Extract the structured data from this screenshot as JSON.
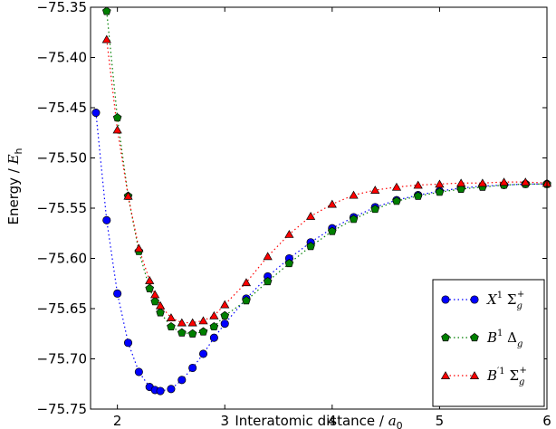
{
  "chart_data": {
    "type": "line",
    "xlabel": {
      "text": "Interatomic distance / ",
      "var": "a",
      "sub": "0"
    },
    "ylabel": {
      "text": "Energy / ",
      "var": "E",
      "sub": "h"
    },
    "xlim": [
      1.75,
      6.0
    ],
    "ylim": [
      -75.75,
      -75.35
    ],
    "xticks": [
      2,
      3,
      4,
      5,
      6
    ],
    "yticks": [
      -75.35,
      -75.4,
      -75.45,
      -75.5,
      -75.55,
      -75.6,
      -75.65,
      -75.7,
      -75.75
    ],
    "xtick_labels": [
      "2",
      "3",
      "4",
      "5",
      "6"
    ],
    "ytick_labels": [
      "−75.35",
      "−75.40",
      "−75.45",
      "−75.50",
      "−75.55",
      "−75.60",
      "−75.65",
      "−75.70",
      "−75.75"
    ],
    "grid": false,
    "legend_position": "lower-right",
    "series": [
      {
        "name": "X1 Σg+",
        "legend": {
          "var": "X",
          "sup": "1",
          "greek": "Σ",
          "gsub": "g",
          "gsup": "+"
        },
        "color": "#0000ff",
        "marker": "circle",
        "line": "dotted",
        "x": [
          1.8,
          1.9,
          2.0,
          2.1,
          2.2,
          2.3,
          2.35,
          2.4,
          2.5,
          2.6,
          2.7,
          2.8,
          2.9,
          3.0,
          3.2,
          3.4,
          3.6,
          3.8,
          4.0,
          4.2,
          4.4,
          4.6,
          4.8,
          5.0,
          5.2,
          5.4,
          5.6,
          5.8,
          6.0
        ],
        "y": [
          -75.455,
          -75.562,
          -75.635,
          -75.684,
          -75.713,
          -75.728,
          -75.731,
          -75.732,
          -75.73,
          -75.721,
          -75.709,
          -75.695,
          -75.679,
          -75.665,
          -75.64,
          -75.618,
          -75.6,
          -75.584,
          -75.57,
          -75.559,
          -75.549,
          -75.542,
          -75.537,
          -75.533,
          -75.53,
          -75.528,
          -75.527,
          -75.526,
          -75.526
        ]
      },
      {
        "name": "B1 Δg",
        "legend": {
          "var": "B",
          "sup": "1",
          "greek": "Δ",
          "gsub": "g",
          "gsup": ""
        },
        "color": "#007f00",
        "marker": "pentagon",
        "line": "dotted",
        "x": [
          1.9,
          2.0,
          2.1,
          2.2,
          2.3,
          2.35,
          2.4,
          2.5,
          2.6,
          2.7,
          2.8,
          2.9,
          3.0,
          3.2,
          3.4,
          3.6,
          3.8,
          4.0,
          4.2,
          4.4,
          4.6,
          4.8,
          5.0,
          5.2,
          5.4,
          5.6,
          5.8,
          6.0
        ],
        "y": [
          -75.354,
          -75.46,
          -75.538,
          -75.593,
          -75.63,
          -75.643,
          -75.654,
          -75.668,
          -75.674,
          -75.675,
          -75.673,
          -75.668,
          -75.657,
          -75.642,
          -75.623,
          -75.605,
          -75.588,
          -75.573,
          -75.561,
          -75.551,
          -75.543,
          -75.538,
          -75.534,
          -75.531,
          -75.529,
          -75.527,
          -75.526,
          -75.526
        ]
      },
      {
        "name": "B′1 Σg+",
        "legend": {
          "var": "B",
          "sup": "′1",
          "greek": "Σ",
          "gsub": "g",
          "gsup": "+"
        },
        "color": "#ff0000",
        "marker": "triangle",
        "line": "dotted",
        "x": [
          1.9,
          2.0,
          2.1,
          2.2,
          2.3,
          2.35,
          2.4,
          2.5,
          2.6,
          2.7,
          2.8,
          2.9,
          3.0,
          3.2,
          3.4,
          3.6,
          3.8,
          4.0,
          4.2,
          4.4,
          4.6,
          4.8,
          5.0,
          5.2,
          5.4,
          5.6,
          5.8,
          6.0
        ],
        "y": [
          -75.382,
          -75.472,
          -75.538,
          -75.59,
          -75.622,
          -75.636,
          -75.647,
          -75.659,
          -75.664,
          -75.664,
          -75.662,
          -75.657,
          -75.646,
          -75.624,
          -75.598,
          -75.576,
          -75.558,
          -75.546,
          -75.537,
          -75.532,
          -75.529,
          -75.527,
          -75.526,
          -75.525,
          -75.525,
          -75.524,
          -75.524,
          -75.525
        ]
      }
    ]
  }
}
